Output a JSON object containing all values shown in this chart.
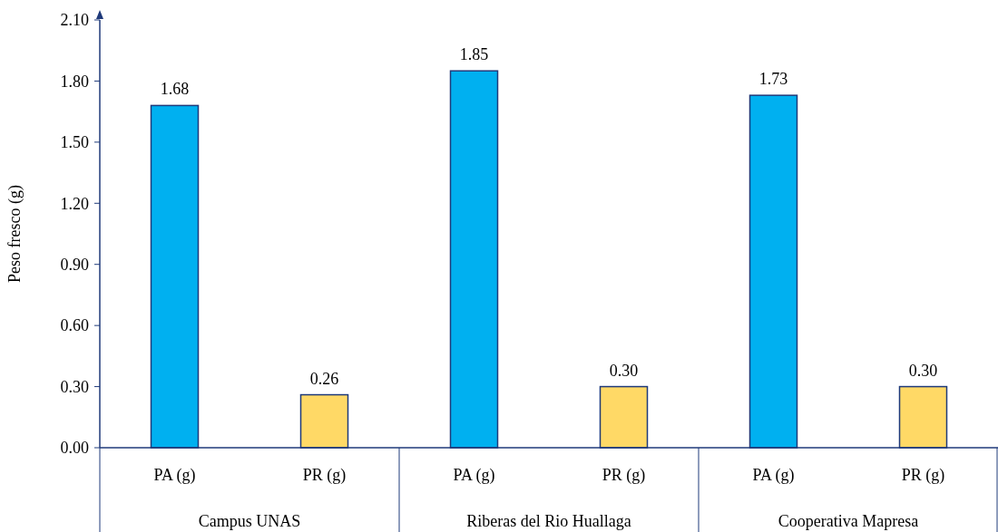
{
  "chart_data": {
    "type": "bar",
    "ylabel": "Peso fresco (g)",
    "categories": [
      "Campus UNAS",
      "Riberas del Rio Huallaga",
      "Cooperativa Mapresa"
    ],
    "series": [
      {
        "name": "PA (g)",
        "color": "#00b0f0",
        "values": [
          1.68,
          1.85,
          1.73
        ],
        "value_labels": [
          "1.68",
          "1.85",
          "1.73"
        ]
      },
      {
        "name": "PR (g)",
        "color": "#ffd966",
        "values": [
          0.26,
          0.3,
          0.3
        ],
        "value_labels": [
          "0.26",
          "0.30",
          "0.30"
        ]
      }
    ],
    "ylim": [
      0,
      2.1
    ],
    "yticks": [
      {
        "value": 0,
        "label": "0.00"
      },
      {
        "value": 0.3,
        "label": "0.30"
      },
      {
        "value": 0.6,
        "label": "0.60"
      },
      {
        "value": 0.9,
        "label": "0.90"
      },
      {
        "value": 1.2,
        "label": "1.20"
      },
      {
        "value": 1.5,
        "label": "1.50"
      },
      {
        "value": 1.8,
        "label": "1.80"
      },
      {
        "value": 2.1,
        "label": "2.10"
      }
    ],
    "grid": false
  }
}
